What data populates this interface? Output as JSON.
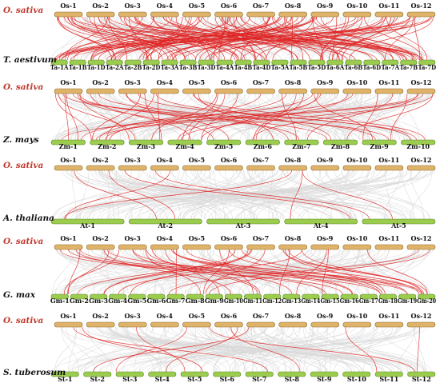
{
  "colors": {
    "os_chromosome": "#e0b36a",
    "os_chromosome_stroke": "#8a6a2a",
    "other_chromosome": "#9ccc4f",
    "other_chromosome_stroke": "#5a8a22",
    "os_species_label": "#c0392b",
    "species_label": "#111111",
    "syntenic_link": "#e02020",
    "background_link": "#d9d9d9"
  },
  "panels": [
    {
      "top_species": "O. sativa",
      "top_chromosomes": [
        "Os-1",
        "Os-2",
        "Os-3",
        "Os-4",
        "Os-5",
        "Os-6",
        "Os-7",
        "Os-8",
        "Os-9",
        "Os-10",
        "Os-11",
        "Os-12"
      ],
      "bottom_species": "T. aestivum",
      "bottom_chromosomes": [
        "Ta-1A",
        "Ta-1B",
        "Ta-1D",
        "Ta-2A",
        "Ta-2B",
        "Ta-2D",
        "Ta-3A",
        "Ta-3B",
        "Ta-3D",
        "Ta-4A",
        "Ta-4B",
        "Ta-4D",
        "Ta-5A",
        "Ta-5B",
        "Ta-5D",
        "Ta-6A",
        "Ta-6B",
        "Ta-6D",
        "Ta-7A",
        "Ta-7B",
        "Ta-7D"
      ]
    },
    {
      "top_species": "O. sativa",
      "top_chromosomes": [
        "Os-1",
        "Os-2",
        "Os-3",
        "Os-4",
        "Os-5",
        "Os-6",
        "Os-7",
        "Os-8",
        "Os-9",
        "Os-10",
        "Os-11",
        "Os-12"
      ],
      "bottom_species": "Z. mays",
      "bottom_chromosomes": [
        "Zm-1",
        "Zm-2",
        "Zm-3",
        "Zm-4",
        "Zm-5",
        "Zm-6",
        "Zm-7",
        "Zm-8",
        "Zm-9",
        "Zm-10"
      ]
    },
    {
      "top_species": "O. sativa",
      "top_chromosomes": [
        "Os-1",
        "Os-2",
        "Os-3",
        "Os-4",
        "Os-5",
        "Os-6",
        "Os-7",
        "Os-8",
        "Os-9",
        "Os-10",
        "Os-11",
        "Os-12"
      ],
      "bottom_species": "A. thaliana",
      "bottom_chromosomes": [
        "At-1",
        "At-2",
        "At-3",
        "At-4",
        "At-5"
      ]
    },
    {
      "top_species": "O. sativa",
      "top_chromosomes": [
        "Os-1",
        "Os-2",
        "Os-3",
        "Os-4",
        "Os-5",
        "Os-6",
        "Os-7",
        "Os-8",
        "Os-9",
        "Os-10",
        "Os-11",
        "Os-12"
      ],
      "bottom_species": "G. max",
      "bottom_chromosomes": [
        "Gm-1",
        "Gm-2",
        "Gm-3",
        "Gm-4",
        "Gm-5",
        "Gm-6",
        "Gm-7",
        "Gm-8",
        "Gm-9",
        "Gm-10",
        "Gm-11",
        "Gm-12",
        "Gm-13",
        "Gm-14",
        "Gm-15",
        "Gm-16",
        "Gm-17",
        "Gm-18",
        "Gm-19",
        "Gm-20"
      ]
    },
    {
      "top_species": "O. sativa",
      "top_chromosomes": [
        "Os-1",
        "Os-2",
        "Os-3",
        "Os-4",
        "Os-5",
        "Os-6",
        "Os-7",
        "Os-8",
        "Os-9",
        "Os-10",
        "Os-11",
        "Os-12"
      ],
      "bottom_species": "S. tuberosum",
      "bottom_chromosomes": [
        "St-1",
        "St-2",
        "St-3",
        "St-4",
        "St-5",
        "St-6",
        "St-7",
        "St-8",
        "St-9",
        "St-10",
        "St-11",
        "St-12"
      ]
    }
  ]
}
